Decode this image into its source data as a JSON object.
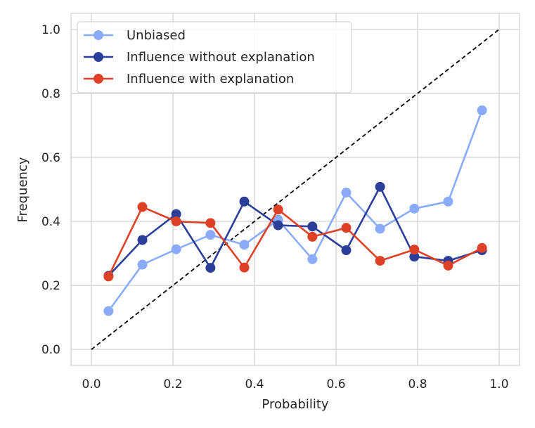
{
  "chart_data": {
    "type": "line",
    "title": "",
    "xlabel": "Probability",
    "ylabel": "Frequency",
    "xlim": [
      -0.05,
      1.05
    ],
    "ylim": [
      -0.05,
      1.05
    ],
    "xticks": [
      0.0,
      0.2,
      0.4,
      0.6,
      0.8,
      1.0
    ],
    "yticks": [
      0.0,
      0.2,
      0.4,
      0.6,
      0.8,
      1.0
    ],
    "xtick_labels": [
      "0.0",
      "0.2",
      "0.4",
      "0.6",
      "0.8",
      "1.0"
    ],
    "ytick_labels": [
      "0.0",
      "0.2",
      "0.4",
      "0.6",
      "0.8",
      "1.0"
    ],
    "grid": true,
    "legend_position": "top-left",
    "reference_line": {
      "style": "dashed",
      "color": "#000000",
      "x": [
        0,
        1
      ],
      "y": [
        0,
        1
      ]
    },
    "x": [
      0.042,
      0.125,
      0.208,
      0.292,
      0.375,
      0.458,
      0.542,
      0.625,
      0.708,
      0.792,
      0.875,
      0.958
    ],
    "series": [
      {
        "name": "Unbiased",
        "color": "#8aacf8",
        "values": [
          0.12,
          0.265,
          0.313,
          0.358,
          0.327,
          0.405,
          0.282,
          0.49,
          0.377,
          0.44,
          0.462,
          0.747
        ]
      },
      {
        "name": "Influence without explanation",
        "color": "#2a3e9a",
        "values": [
          0.23,
          0.342,
          0.423,
          0.255,
          0.462,
          0.388,
          0.384,
          0.31,
          0.508,
          0.29,
          0.277,
          0.31
        ]
      },
      {
        "name": "Influence with explanation",
        "color": "#de4125",
        "values": [
          0.228,
          0.445,
          0.4,
          0.395,
          0.256,
          0.437,
          0.352,
          0.38,
          0.277,
          0.312,
          0.262,
          0.317
        ]
      }
    ]
  }
}
